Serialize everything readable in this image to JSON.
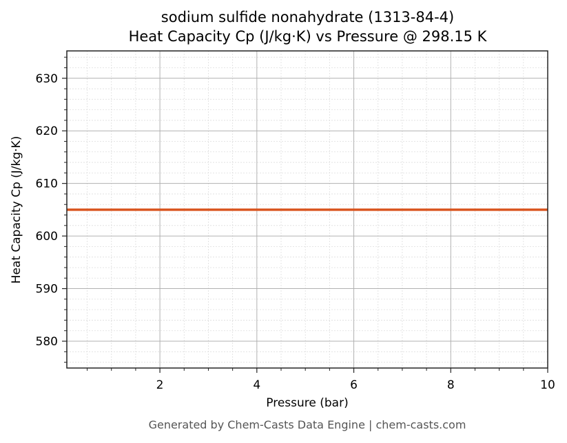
{
  "chart_data": {
    "type": "line",
    "title": "sodium sulfide nonahydrate (1313-84-4)",
    "subtitle": "Heat Capacity Cp (J/kg·K) vs Pressure @ 298.15 K",
    "xlabel": "Pressure (bar)",
    "ylabel": "Heat Capacity Cp (J/kg·K)",
    "xlim": [
      0.08,
      10
    ],
    "ylim": [
      574.9,
      635.2
    ],
    "x_ticks": [
      2,
      4,
      6,
      8,
      10
    ],
    "y_ticks": [
      580,
      590,
      600,
      610,
      620,
      630
    ],
    "x_minor_step": 0.5,
    "y_minor_step": 2,
    "grid": true,
    "legend": null,
    "series": [
      {
        "name": "Cp",
        "color": "#d9541e",
        "x": [
          0.08,
          1,
          2,
          3,
          4,
          5,
          6,
          7,
          8,
          9,
          10
        ],
        "values": [
          605,
          605,
          605,
          605,
          605,
          605,
          605,
          605,
          605,
          605,
          605
        ]
      }
    ]
  },
  "labels": {
    "title_line1": "sodium sulfide nonahydrate (1313-84-4)",
    "title_line2": "Heat Capacity Cp (J/kg·K) vs Pressure @ 298.15 K",
    "xlabel": "Pressure (bar)",
    "ylabel": "Heat Capacity Cp (J/kg·K)",
    "footer": "Generated by Chem-Casts Data Engine | chem-casts.com"
  },
  "colors": {
    "line": "#d9541e",
    "major_grid": "#b0b0b0",
    "minor_grid": "#dddddd",
    "axes": "#222222",
    "footer": "#555555"
  }
}
